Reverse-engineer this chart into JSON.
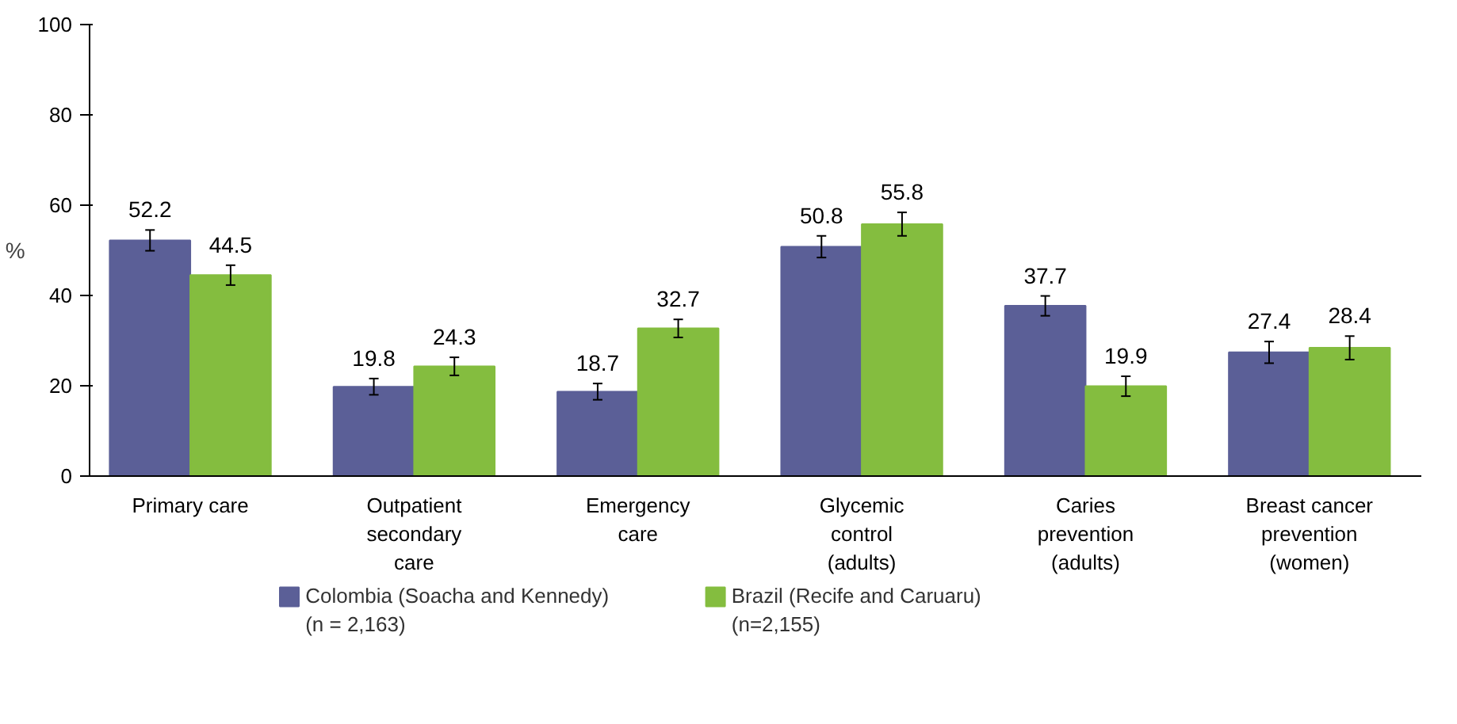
{
  "chart_data": {
    "type": "bar",
    "ylabel": "%",
    "categories": [
      "Primary care",
      "Outpatient\nsecondary\ncare",
      "Emergency\ncare",
      "Glycemic\ncontrol\n(adults)",
      "Caries\nprevention\n(adults)",
      "Breast cancer\nprevention\n(women)"
    ],
    "series": [
      {
        "name": "Colombia (Soacha and Kennedy)\n(n = 2,163)",
        "color": "#5b5f97",
        "values": [
          52.2,
          19.8,
          18.7,
          50.8,
          37.7,
          27.4
        ],
        "errors": [
          2.3,
          1.8,
          1.8,
          2.4,
          2.2,
          2.4
        ]
      },
      {
        "name": "Brazil (Recife and Caruaru)\n(n=2,155)",
        "color": "#84bd3f",
        "values": [
          44.5,
          24.3,
          32.7,
          55.8,
          19.9,
          28.4
        ],
        "errors": [
          2.2,
          2.0,
          2.0,
          2.6,
          2.2,
          2.6
        ]
      }
    ],
    "ylim": [
      0,
      100
    ],
    "yticks": [
      0,
      20,
      40,
      60,
      80,
      100
    ],
    "grid": false,
    "legend": "bottom",
    "data_labels": true
  }
}
